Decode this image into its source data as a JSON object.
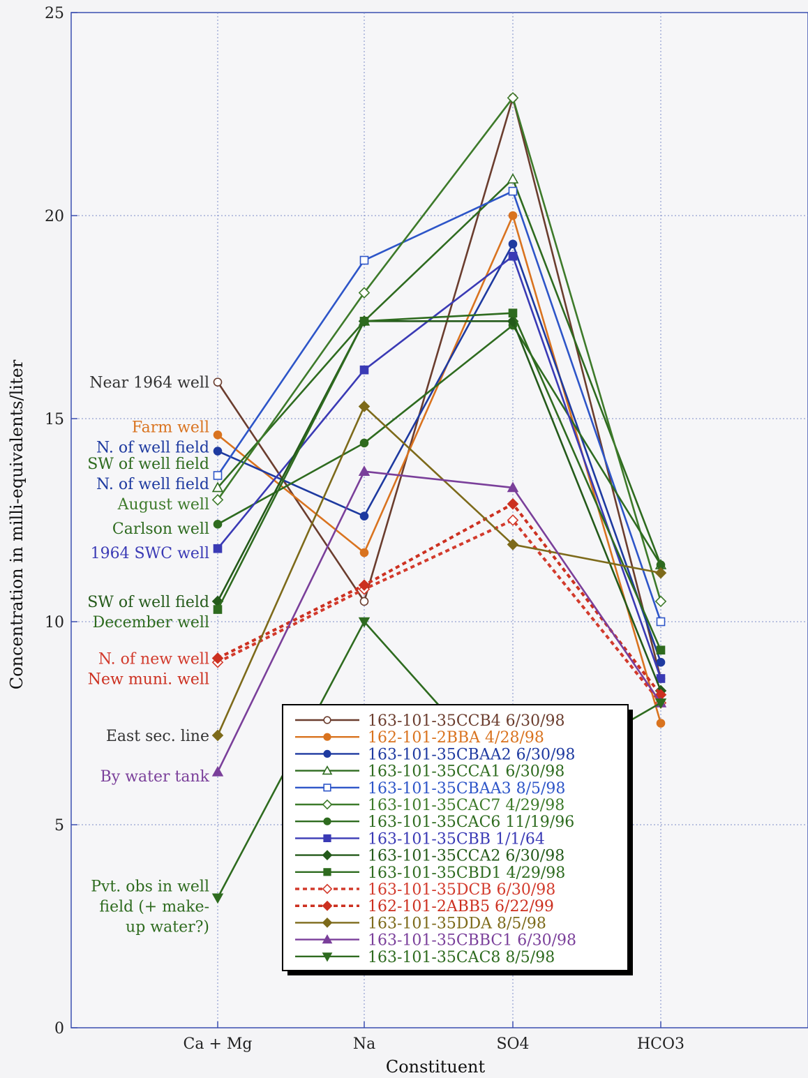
{
  "chart_data": {
    "type": "line",
    "xlabel": "Constituent",
    "ylabel": "Concentration  in  milli-equivalents/liter",
    "categories": [
      "Ca + Mg",
      "Na",
      "SO4",
      "HCO3"
    ],
    "ylim": [
      0,
      25
    ],
    "yticks": [
      "0",
      "5",
      "10",
      "15",
      "20",
      "25"
    ],
    "grid": true,
    "legend_position": "bottom-center",
    "series": [
      {
        "name": "163-101-35CCB4  6/30/98",
        "color": "#6b3d2e",
        "marker": "circle-open",
        "dash": false,
        "values": [
          15.9,
          10.5,
          22.9,
          8.6
        ]
      },
      {
        "name": "162-101-2BBA  4/28/98",
        "color": "#d9731f",
        "marker": "circle",
        "dash": false,
        "values": [
          14.6,
          11.7,
          20.0,
          7.5
        ]
      },
      {
        "name": "163-101-35CBAA2 6/30/98",
        "color": "#1e3aa0",
        "marker": "circle",
        "dash": false,
        "values": [
          14.2,
          12.6,
          19.3,
          9.0
        ]
      },
      {
        "name": "163-101-35CCA1  6/30/98",
        "color": "#2e6b1f",
        "marker": "triangle-open",
        "dash": false,
        "values": [
          13.3,
          17.4,
          20.9,
          11.4
        ]
      },
      {
        "name": "163-101-35CBAA3 8/5/98",
        "color": "#2d55c8",
        "marker": "square-open",
        "dash": false,
        "values": [
          13.6,
          18.9,
          20.6,
          10.0
        ]
      },
      {
        "name": "163-101-35CAC7  4/29/98",
        "color": "#3d7a2a",
        "marker": "diamond-open",
        "dash": false,
        "values": [
          13.0,
          18.1,
          22.9,
          10.5
        ]
      },
      {
        "name": "163-101-35CAC6 11/19/96",
        "color": "#2e6b1f",
        "marker": "circle",
        "dash": false,
        "values": [
          12.4,
          14.4,
          17.3,
          11.4
        ]
      },
      {
        "name": "163-101-35CBB  1/1/64",
        "color": "#3a3ab5",
        "marker": "square",
        "dash": false,
        "values": [
          11.8,
          16.2,
          19.0,
          8.6
        ]
      },
      {
        "name": "163-101-35CCA2  6/30/98",
        "color": "#245a1a",
        "marker": "diamond",
        "dash": false,
        "values": [
          10.5,
          17.4,
          17.4,
          8.3
        ]
      },
      {
        "name": "163-101-35CBD1  4/29/98",
        "color": "#2e6b1f",
        "marker": "square",
        "dash": false,
        "values": [
          10.3,
          17.4,
          17.6,
          9.3
        ]
      },
      {
        "name": "163-101-35DCB  6/30/98",
        "color": "#d23a2c",
        "marker": "diamond-open",
        "dash": true,
        "values": [
          9.0,
          10.8,
          12.5,
          8.0
        ]
      },
      {
        "name": "162-101-2ABB5  6/22/99",
        "color": "#cc3020",
        "marker": "diamond",
        "dash": true,
        "values": [
          9.1,
          10.9,
          12.9,
          8.2
        ]
      },
      {
        "name": "163-101-35DDA  8/5/98",
        "color": "#7d6a1a",
        "marker": "diamond",
        "dash": false,
        "values": [
          7.2,
          15.3,
          11.9,
          11.2
        ]
      },
      {
        "name": "163-101-35CBBC1 6/30/98",
        "color": "#7a3f9a",
        "marker": "triangle",
        "dash": false,
        "values": [
          6.3,
          13.7,
          13.3,
          8.0
        ]
      },
      {
        "name": "163-101-35CAC8  8/5/98",
        "color": "#2e6b1f",
        "marker": "triangle-down",
        "dash": false,
        "values": [
          3.2,
          10.0,
          5.9,
          8.0
        ]
      }
    ],
    "annotations": [
      {
        "text": "Near 1964 well",
        "color": "#333333",
        "y": 15.9
      },
      {
        "text": "Farm well",
        "color": "#d9731f",
        "y": 14.8
      },
      {
        "text": "N. of well field",
        "color": "#1e3aa0",
        "y": 14.3
      },
      {
        "text": "SW of well field",
        "color": "#2e6b1f",
        "y": 13.9
      },
      {
        "text": "N. of well field",
        "color": "#1e3aa0",
        "y": 13.4
      },
      {
        "text": "August well",
        "color": "#3d7a2a",
        "y": 12.9
      },
      {
        "text": "Carlson well",
        "color": "#2e6b1f",
        "y": 12.3
      },
      {
        "text": "1964 SWC well",
        "color": "#3a3ab5",
        "y": 11.7
      },
      {
        "text": "SW of well field",
        "color": "#245a1a",
        "y": 10.5
      },
      {
        "text": "December well",
        "color": "#2e6b1f",
        "y": 10.0
      },
      {
        "text": "N. of new well",
        "color": "#d23a2c",
        "y": 9.1
      },
      {
        "text": "New muni. well",
        "color": "#cc3020",
        "y": 8.6
      },
      {
        "text": "East sec. line",
        "color": "#333333",
        "y": 7.2
      },
      {
        "text": "By water tank",
        "color": "#7a3f9a",
        "y": 6.2
      },
      {
        "text": "Pvt. obs in well",
        "color": "#2e6b1f",
        "y": 3.5
      },
      {
        "text": "field (+ make-",
        "color": "#2e6b1f",
        "y": 3.0
      },
      {
        "text": "up water?)",
        "color": "#2e6b1f",
        "y": 2.5
      }
    ]
  }
}
